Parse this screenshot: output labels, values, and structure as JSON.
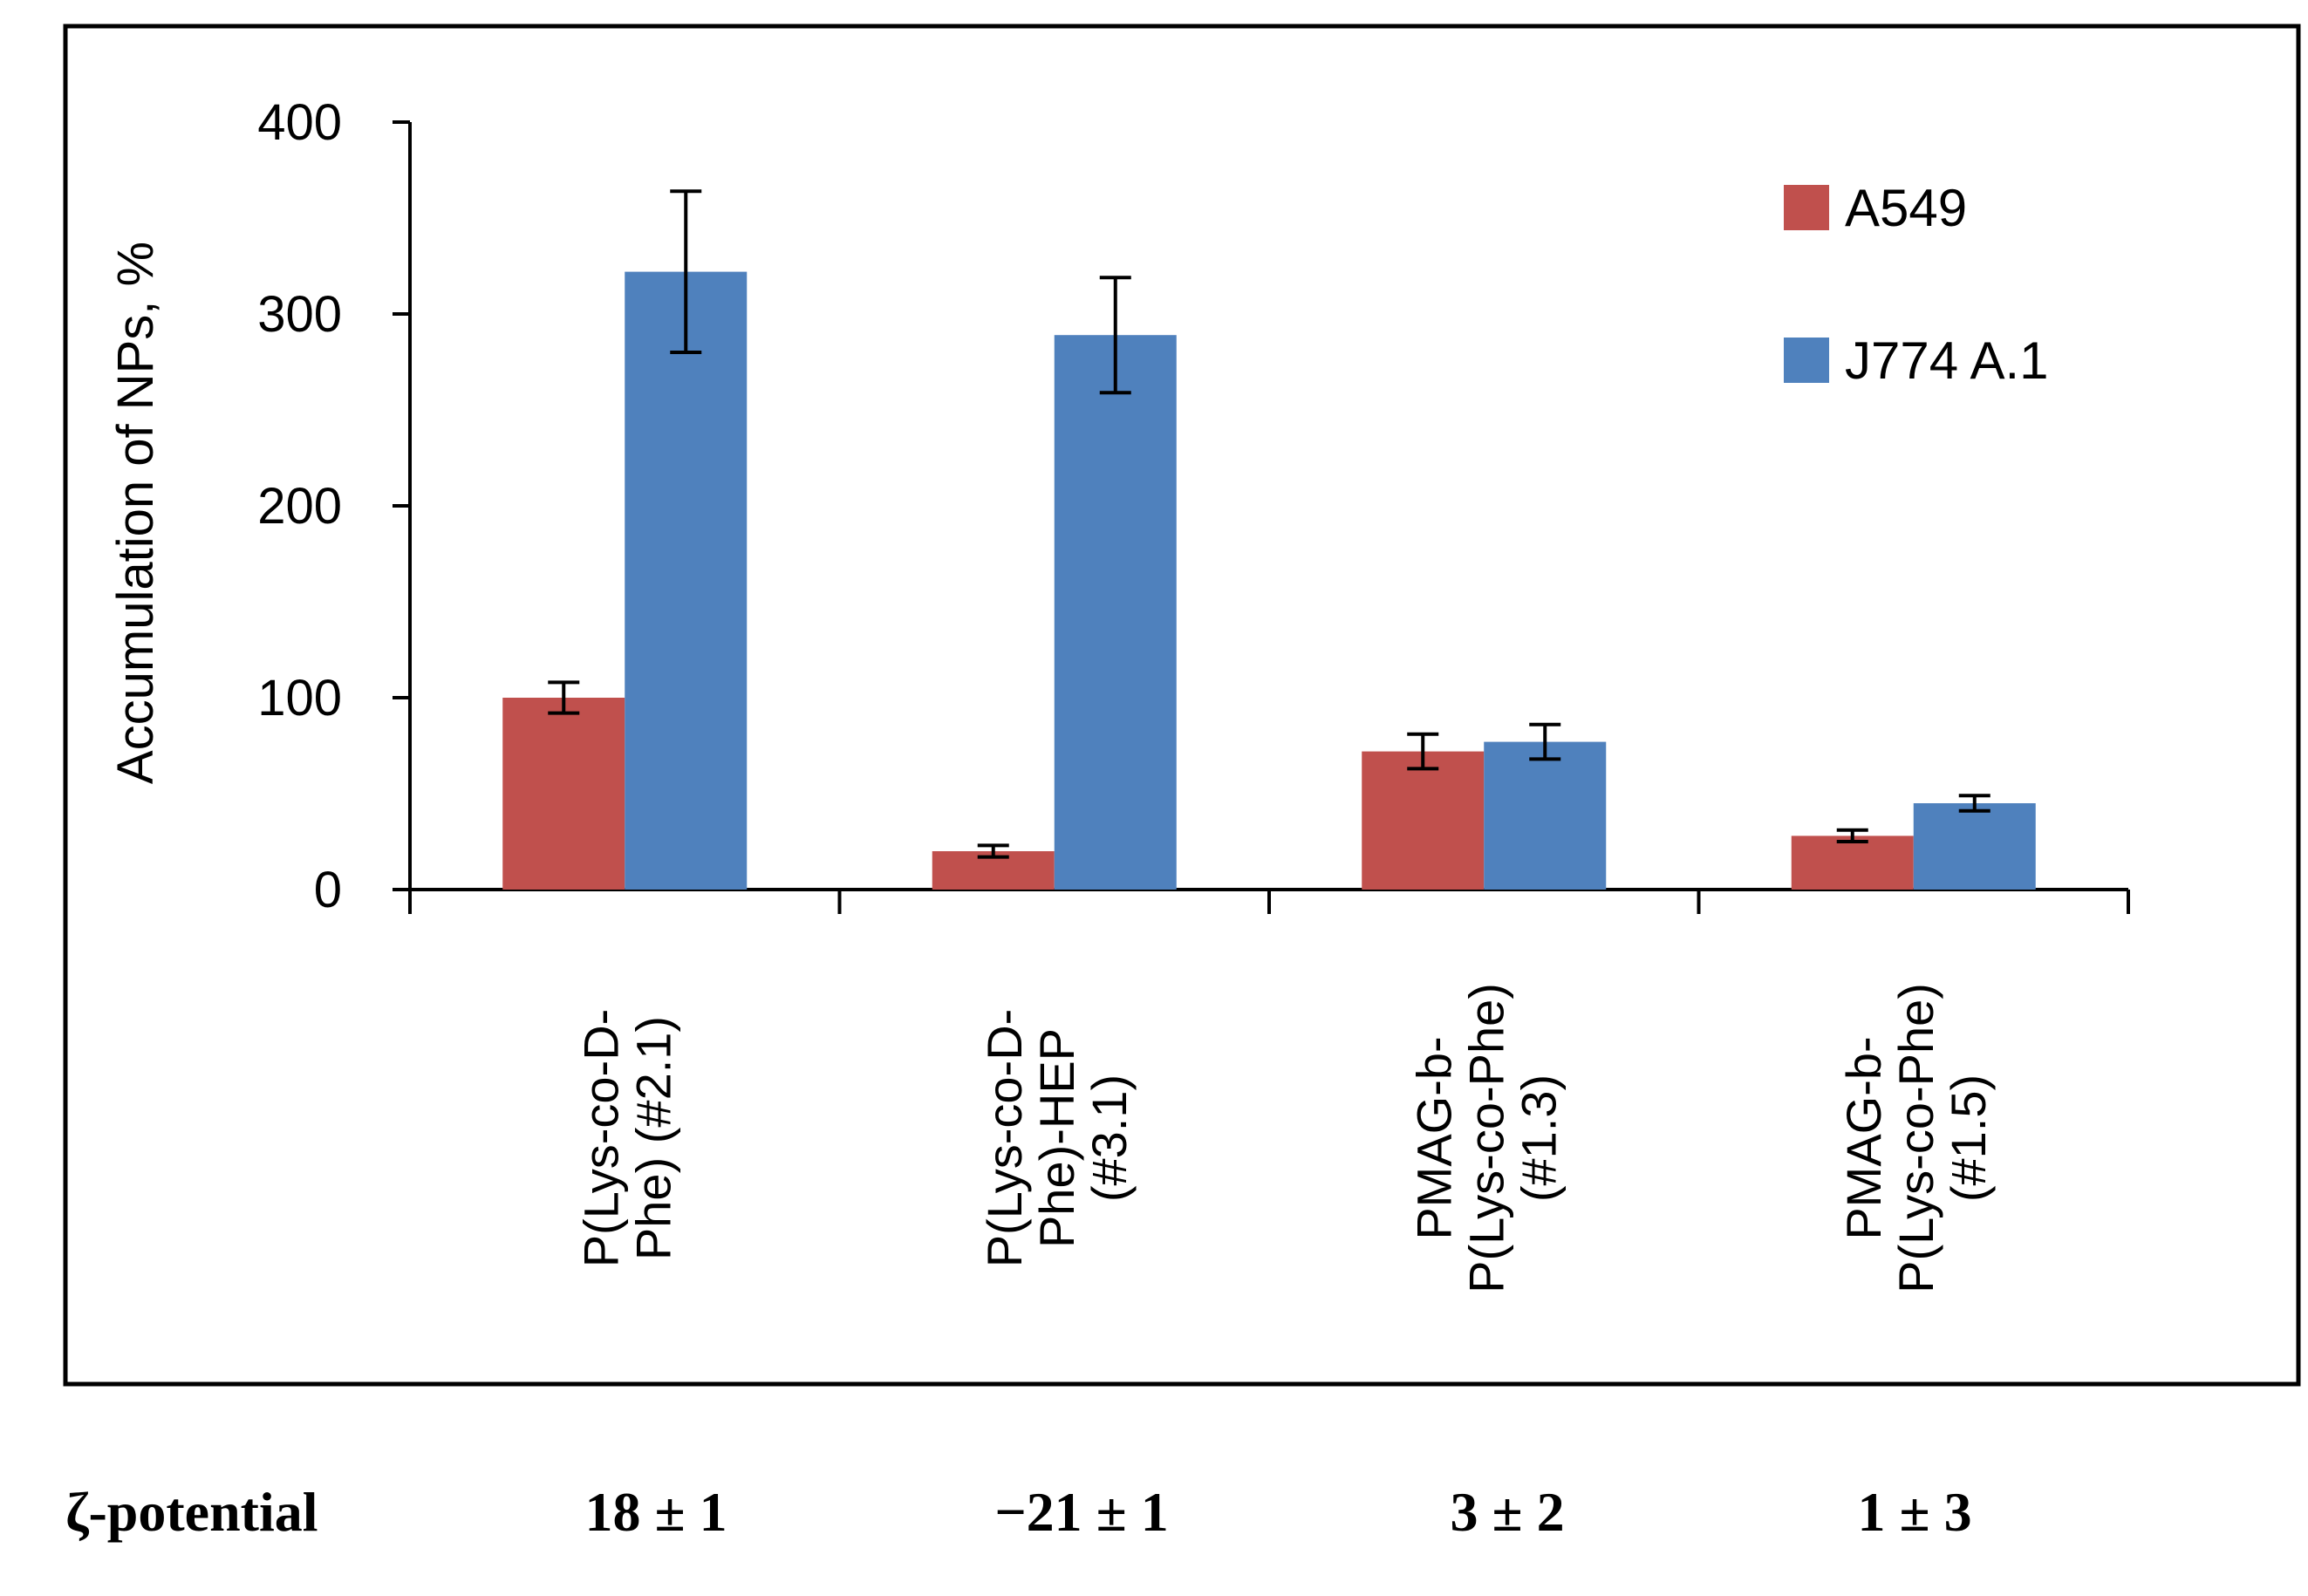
{
  "chart_data": {
    "type": "bar",
    "ylabel": "Accumulation of NPs, %",
    "ylim": [
      0,
      400
    ],
    "yticks": [
      0,
      100,
      200,
      300,
      400
    ],
    "categories": [
      [
        "P(Lys-co-D-",
        "Phe) (#2.1)"
      ],
      [
        "P(Lys-co-D-",
        "Phe)-HEP",
        "(#3.1)"
      ],
      [
        "PMAG-b-",
        "P(Lys-co-Phe)",
        "(#1.3)"
      ],
      [
        "PMAG-b-",
        "P(Lys-co-Phe)",
        "(#1.5)"
      ]
    ],
    "series": [
      {
        "name": "A549",
        "color": "#c0504d",
        "values": [
          100,
          20,
          72,
          28
        ],
        "errors": [
          8,
          3,
          9,
          3
        ]
      },
      {
        "name": "J774 A.1",
        "color": "#4f81bd",
        "values": [
          322,
          289,
          77,
          45
        ],
        "errors": [
          42,
          30,
          9,
          4
        ]
      }
    ],
    "legend_position": "top-right"
  },
  "zeta": {
    "label": "ζ-potential",
    "values": [
      "18 ± 1",
      "−21 ± 1",
      "3 ± 2",
      "1 ± 3"
    ]
  }
}
